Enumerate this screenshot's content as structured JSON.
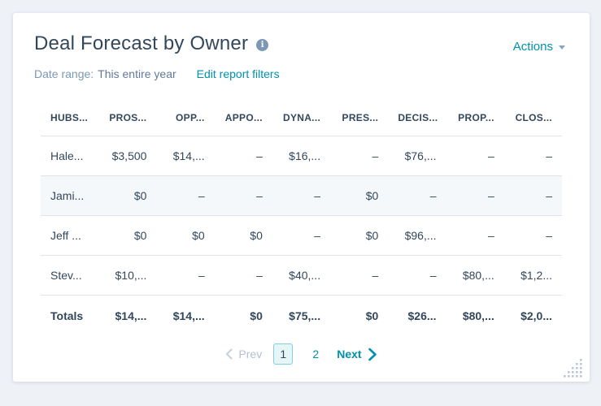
{
  "header": {
    "title": "Deal Forecast by Owner",
    "actions_label": "Actions"
  },
  "filters": {
    "date_range_label": "Date range:",
    "date_range_value": "This entire year",
    "edit_filters_label": "Edit report filters"
  },
  "table": {
    "columns": [
      "HUBS...",
      "PROS...",
      "OPP...",
      "APPO...",
      "DYNA...",
      "PRES...",
      "DECIS...",
      "PROP...",
      "CLOS..."
    ],
    "rows": [
      [
        "Hale...",
        "$3,500",
        "$14,...",
        "–",
        "$16,...",
        "–",
        "$76,...",
        "–",
        "–"
      ],
      [
        "Jami...",
        "$0",
        "–",
        "–",
        "–",
        "$0",
        "–",
        "–",
        "–"
      ],
      [
        "Jeff ...",
        "$0",
        "$0",
        "$0",
        "–",
        "$0",
        "$96,...",
        "–",
        "–"
      ],
      [
        "Stev...",
        "$10,...",
        "–",
        "–",
        "$40,...",
        "–",
        "–",
        "$80,...",
        "$1,2..."
      ]
    ],
    "highlighted_row_index": 1,
    "totals": [
      "Totals",
      "$14,...",
      "$14,...",
      "$0",
      "$75,...",
      "$0",
      "$26...",
      "$80,...",
      "$2,0..."
    ]
  },
  "pagination": {
    "prev_label": "Prev",
    "pages": [
      "1",
      "2"
    ],
    "active_page": "1",
    "next_label": "Next"
  },
  "icons": {
    "info": "i"
  },
  "colors": {
    "accent": "#0091ae",
    "text": "#33475b",
    "muted": "#7c98b6",
    "border": "#dfe3eb",
    "row_highlight": "#f5f8fa",
    "page_background": "#eef2f7",
    "card_background": "#ffffff",
    "active_page_border": "#7fd1de",
    "active_page_background": "#e5f5f8"
  }
}
